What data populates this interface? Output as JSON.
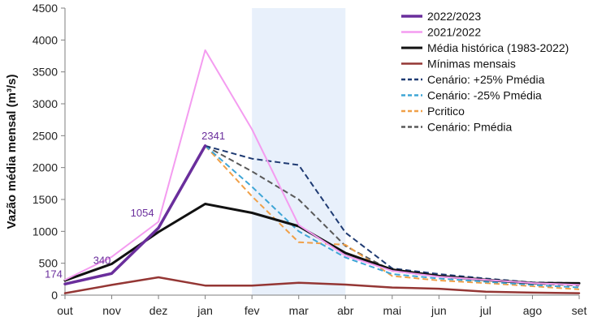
{
  "chart_data": {
    "type": "line",
    "title": "",
    "xlabel": "",
    "ylabel": "Vazão média mensal (m³/s)",
    "ylim": [
      0,
      4500
    ],
    "yticks": [
      0,
      500,
      1000,
      1500,
      2000,
      2500,
      3000,
      3500,
      4000,
      4500
    ],
    "categories": [
      "out",
      "nov",
      "dez",
      "jan",
      "fev",
      "mar",
      "abr",
      "mai",
      "jun",
      "jul",
      "ago",
      "set"
    ],
    "grid": false,
    "legend_position": "top-right",
    "shaded_region": {
      "from": "fev",
      "to": "abr",
      "color": "#e8f0fb"
    },
    "series": [
      {
        "name": "2022/2023",
        "color": "#6a2e9c",
        "dash": "solid",
        "width": 3.5,
        "values": [
          174,
          340,
          1054,
          2341,
          null,
          null,
          null,
          null,
          null,
          null,
          null,
          null
        ]
      },
      {
        "name": "2021/2022",
        "color": "#f49cf0",
        "dash": "solid",
        "width": 2,
        "values": [
          240,
          600,
          1150,
          3840,
          2600,
          1100,
          620,
          380,
          290,
          240,
          190,
          160
        ]
      },
      {
        "name": "Média histórica (1983-2022)",
        "color": "#111111",
        "dash": "solid",
        "width": 3,
        "values": [
          230,
          490,
          990,
          1430,
          1290,
          1080,
          660,
          400,
          300,
          240,
          190,
          185
        ]
      },
      {
        "name": "Mínimas mensais",
        "color": "#943634",
        "dash": "solid",
        "width": 2.5,
        "values": [
          30,
          160,
          280,
          150,
          150,
          195,
          165,
          120,
          100,
          55,
          40,
          30
        ]
      },
      {
        "name": "Cenário: +25% Pmédia",
        "color": "#1f3b73",
        "dash": "dashed",
        "width": 2,
        "values": [
          null,
          null,
          null,
          2341,
          2140,
          2040,
          980,
          420,
          330,
          260,
          200,
          190
        ]
      },
      {
        "name": "Cenário: -25% Pmédia",
        "color": "#3fa6d6",
        "dash": "dashed",
        "width": 2,
        "values": [
          null,
          null,
          null,
          2341,
          1700,
          1000,
          590,
          330,
          260,
          210,
          160,
          120
        ]
      },
      {
        "name": "Pcritico",
        "color": "#f0a048",
        "dash": "dashed",
        "width": 2,
        "values": [
          null,
          null,
          null,
          2341,
          1550,
          830,
          790,
          300,
          230,
          190,
          140,
          90
        ]
      },
      {
        "name": "Cenário: Pmédia",
        "color": "#595959",
        "dash": "dashed",
        "width": 2,
        "values": [
          null,
          null,
          null,
          2341,
          1940,
          1500,
          770,
          380,
          290,
          230,
          180,
          150
        ]
      }
    ],
    "annotations": [
      {
        "category": "out",
        "value": 174,
        "text": "174"
      },
      {
        "category": "nov",
        "value": 340,
        "text": "340"
      },
      {
        "category": "dez",
        "value": 1054,
        "text": "1054"
      },
      {
        "category": "jan",
        "value": 2341,
        "text": "2341"
      }
    ]
  }
}
